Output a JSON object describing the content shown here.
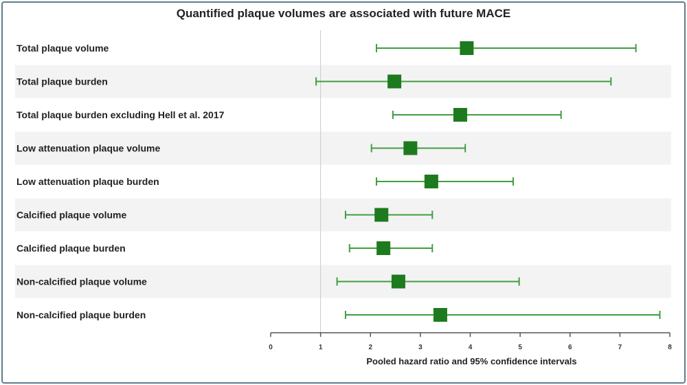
{
  "chart_data": {
    "type": "forest",
    "title": "Quantified plaque volumes are associated with future MACE",
    "xlabel": "Pooled hazard ratio and 95% confidence intervals",
    "xlim": [
      0,
      8
    ],
    "ticks": [
      0,
      1,
      2,
      3,
      4,
      5,
      6,
      7,
      8
    ],
    "reference_line": 1,
    "marker_color": "#1e7a1e",
    "ci_color": "#3f9e3f",
    "stripe_color": "#f3f3f3",
    "rows": [
      {
        "label": "Total plaque volume",
        "hr": 3.93,
        "lower": 2.12,
        "upper": 7.32
      },
      {
        "label": "Total plaque burden",
        "hr": 2.48,
        "lower": 0.91,
        "upper": 6.82
      },
      {
        "label": "Total plaque burden excluding Hell et al. 2017",
        "hr": 3.8,
        "lower": 2.45,
        "upper": 5.82
      },
      {
        "label": "Low attenuation plaque volume",
        "hr": 2.8,
        "lower": 2.02,
        "upper": 3.9
      },
      {
        "label": "Low attenuation plaque burden",
        "hr": 3.22,
        "lower": 2.12,
        "upper": 4.86
      },
      {
        "label": "Calcified plaque volume",
        "hr": 2.22,
        "lower": 1.5,
        "upper": 3.24
      },
      {
        "label": "Calcified plaque burden",
        "hr": 2.26,
        "lower": 1.58,
        "upper": 3.24
      },
      {
        "label": "Non-calcified plaque volume",
        "hr": 2.56,
        "lower": 1.33,
        "upper": 4.98
      },
      {
        "label": "Non-calcified plaque burden",
        "hr": 3.4,
        "lower": 1.5,
        "upper": 7.8
      }
    ]
  }
}
